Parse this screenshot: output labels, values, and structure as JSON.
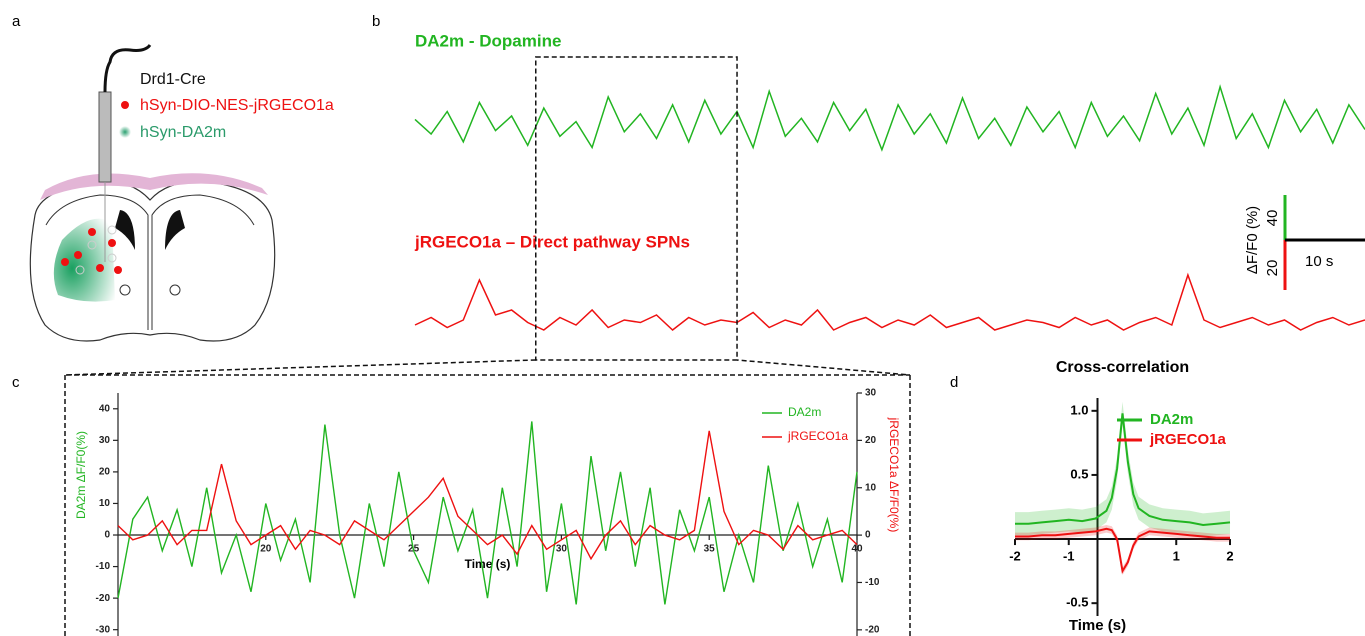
{
  "panel_a": {
    "label": "a",
    "labels": [
      "Drd1-Cre",
      "hSyn-DIO-NES-jRGECO1a",
      "hSyn-DA2m"
    ]
  },
  "chart_data": [
    {
      "panel": "b",
      "type": "line",
      "x": [
        0,
        2,
        4,
        6,
        8,
        10,
        12,
        14,
        16,
        18,
        20,
        22,
        24,
        26,
        28,
        30,
        32,
        34,
        36,
        38,
        40,
        42,
        44,
        46,
        48,
        50,
        52,
        54,
        56,
        58,
        60,
        62,
        64,
        66,
        68,
        70,
        72,
        74,
        76,
        78,
        80,
        82,
        84,
        86,
        88,
        90,
        92,
        94,
        96,
        98,
        100,
        102,
        104,
        106,
        108,
        110,
        112,
        114,
        116,
        118
      ],
      "series": [
        {
          "name": "DA2m - Dopamine",
          "color": "#22b522",
          "values": [
            5,
            -8,
            12,
            -15,
            20,
            -5,
            8,
            -18,
            15,
            -10,
            3,
            -20,
            25,
            -6,
            10,
            -12,
            18,
            -15,
            22,
            -8,
            12,
            -20,
            30,
            -10,
            6,
            -15,
            20,
            -5,
            14,
            -22,
            18,
            -8,
            10,
            -16,
            24,
            -12,
            6,
            -18,
            16,
            -6,
            12,
            -20,
            20,
            -10,
            8,
            -14,
            28,
            -8,
            15,
            -18,
            34,
            -12,
            10,
            -20,
            22,
            -6,
            14,
            -16,
            18,
            -4
          ]
        },
        {
          "name": "jRGECO1a – Direct pathway SPNs",
          "color": "#ee1111",
          "values": [
            0,
            3,
            -1,
            2,
            18,
            4,
            6,
            1,
            -2,
            3,
            0,
            6,
            -1,
            2,
            1,
            4,
            -2,
            3,
            0,
            2,
            1,
            5,
            -1,
            2,
            0,
            6,
            -2,
            1,
            3,
            -1,
            2,
            0,
            4,
            -1,
            1,
            3,
            -2,
            0,
            2,
            1,
            -1,
            3,
            0,
            2,
            -2,
            1,
            3,
            0,
            20,
            2,
            -1,
            1,
            3,
            0,
            2,
            -2,
            1,
            3,
            0,
            2
          ]
        }
      ],
      "scale_bar": {
        "label": "ΔF/F0 (%)",
        "y": [
          40,
          20
        ],
        "x": {
          "value": 10,
          "label": "10 s"
        }
      }
    },
    {
      "panel": "c",
      "type": "line",
      "xlabel": "Time (s)",
      "ylabel": "DA2m ΔF/F0(%)",
      "y2label": "jRGECO1a ΔF/F0(%)",
      "x": [
        15,
        15.5,
        16,
        16.5,
        17,
        17.5,
        18,
        18.5,
        19,
        19.5,
        20,
        20.5,
        21,
        21.5,
        22,
        22.5,
        23,
        23.5,
        24,
        24.5,
        25,
        25.5,
        26,
        26.5,
        27,
        27.5,
        28,
        28.5,
        29,
        29.5,
        30,
        30.5,
        31,
        31.5,
        32,
        32.5,
        33,
        33.5,
        34,
        34.5,
        35,
        35.5,
        36,
        36.5,
        37,
        37.5,
        38,
        38.5,
        39,
        39.5,
        40
      ],
      "xlim": [
        15,
        40
      ],
      "ylim": [
        -32,
        45
      ],
      "y2lim": [
        -21.3,
        30
      ],
      "xticks": [
        20,
        25,
        30,
        35,
        40
      ],
      "yticks": [
        -30,
        -20,
        -10,
        0,
        10,
        20,
        30,
        40
      ],
      "y2ticks": [
        -20,
        -10,
        0,
        10,
        20,
        30
      ],
      "legend": "upper right",
      "series": [
        {
          "name": "DA2m",
          "color": "#22b522",
          "values": [
            -20,
            5,
            12,
            -5,
            8,
            -10,
            15,
            -12,
            0,
            -18,
            10,
            -8,
            5,
            -15,
            35,
            0,
            -20,
            10,
            -10,
            20,
            -5,
            -15,
            12,
            -5,
            8,
            -20,
            15,
            -10,
            36,
            -18,
            10,
            -22,
            25,
            -5,
            20,
            -10,
            15,
            -22,
            8,
            -5,
            12,
            -18,
            0,
            -15,
            22,
            -5,
            10,
            -10,
            5,
            -15,
            20
          ]
        },
        {
          "name": "jRGECO1a",
          "color": "#ee1111",
          "axis": "y2",
          "values": [
            2,
            -1,
            0,
            3,
            -2,
            1,
            1,
            15,
            3,
            -2,
            0,
            2,
            -3,
            1,
            0,
            -2,
            3,
            1,
            -1,
            2,
            5,
            8,
            12,
            4,
            1,
            -2,
            0,
            -4,
            2,
            -3,
            -1,
            1,
            -5,
            0,
            3,
            -2,
            2,
            0,
            -1,
            1,
            22,
            5,
            -2,
            1,
            0,
            -3,
            2,
            -1,
            0,
            1,
            -2
          ]
        }
      ]
    },
    {
      "panel": "d",
      "type": "line",
      "title": "Cross-correlation",
      "xlabel": "Time (s)",
      "x": [
        -2,
        -1.75,
        -1.5,
        -1.25,
        -1,
        -0.75,
        -0.5,
        -0.3,
        -0.2,
        -0.1,
        0,
        0.1,
        0.2,
        0.3,
        0.5,
        0.75,
        1,
        1.25,
        1.5,
        1.75,
        2
      ],
      "xlim": [
        -2,
        2
      ],
      "ylim": [
        -0.6,
        1.1
      ],
      "xticks": [
        -2,
        -1,
        1,
        2
      ],
      "yticks": [
        -0.5,
        0.5,
        {
          "value": 1,
          "label": "1.0"
        }
      ],
      "legend": "upper right",
      "series": [
        {
          "name": "DA2m",
          "color": "#22b522",
          "values": [
            0.12,
            0.12,
            0.13,
            0.14,
            0.15,
            0.14,
            0.16,
            0.22,
            0.32,
            0.55,
            0.98,
            0.6,
            0.35,
            0.24,
            0.18,
            0.15,
            0.14,
            0.13,
            0.11,
            0.12,
            0.13
          ],
          "error": [
            0.09,
            0.09,
            0.09,
            0.09,
            0.09,
            0.09,
            0.09,
            0.09,
            0.09,
            0.09,
            0.09,
            0.09,
            0.09,
            0.09,
            0.09,
            0.09,
            0.09,
            0.09,
            0.09,
            0.09,
            0.09
          ]
        },
        {
          "name": "jRGECO1a",
          "color": "#ee1111",
          "values": [
            0.02,
            0.02,
            0.03,
            0.03,
            0.04,
            0.05,
            0.06,
            0.08,
            0.07,
            0.0,
            -0.25,
            -0.18,
            -0.05,
            0.02,
            0.06,
            0.05,
            0.04,
            0.03,
            0.02,
            0.01,
            0.01
          ],
          "error": [
            0.03,
            0.03,
            0.03,
            0.03,
            0.03,
            0.03,
            0.03,
            0.03,
            0.03,
            0.03,
            0.03,
            0.03,
            0.03,
            0.03,
            0.03,
            0.03,
            0.03,
            0.03,
            0.03,
            0.03,
            0.03
          ]
        }
      ]
    }
  ]
}
